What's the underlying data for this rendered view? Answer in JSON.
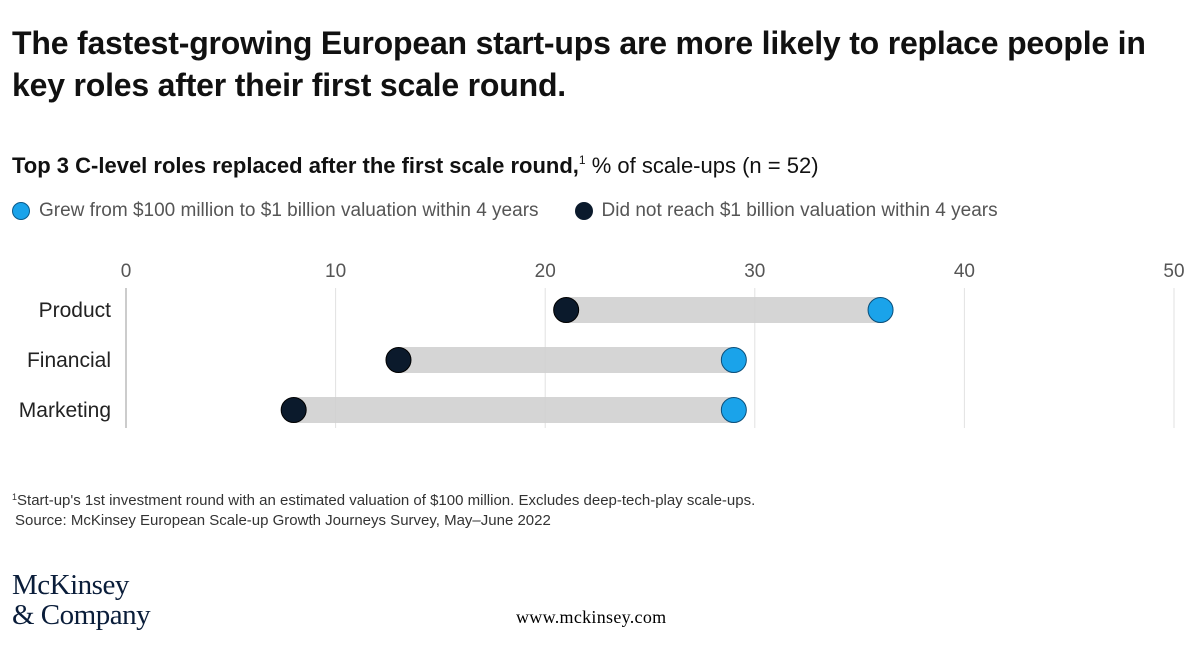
{
  "title": "The fastest-growing European start-ups are more likely to replace people in key roles after their first scale round.",
  "subtitle": {
    "bold": "Top 3 C-level roles replaced after the first scale round,",
    "sup": "1",
    "rest": " % of scale-ups (n = 52)"
  },
  "colors": {
    "accent": "#1aa3ea",
    "dark": "#0b1a2c",
    "bar": "#d0d0d0",
    "grid": "#e2e2e2"
  },
  "chart_data": {
    "type": "dumbbell",
    "title": "Top 3 C-level roles replaced after the first scale round",
    "xlabel": "% of scale-ups (n = 52)",
    "xlim": [
      0,
      50
    ],
    "xticks": [
      "0",
      "10",
      "20",
      "30",
      "40",
      "50"
    ],
    "xtick_values": [
      0,
      10,
      20,
      30,
      40,
      50
    ],
    "categories": [
      "Product",
      "Financial",
      "Marketing"
    ],
    "series": [
      {
        "name": "Grew from $100 million to $1 billion valuation within 4 years",
        "color": "#1aa3ea",
        "values": [
          36,
          29,
          29
        ]
      },
      {
        "name": "Did not reach $1 billion valuation within 4 years",
        "color": "#0b1a2c",
        "values": [
          21,
          13,
          8
        ]
      }
    ]
  },
  "footnote": {
    "sup": "1",
    "line1": "Start-up's 1st investment round with an estimated valuation of $100 million. Excludes deep-tech-play scale-ups.",
    "line2": "Source: McKinsey European Scale-up Growth Journeys Survey, May–June 2022"
  },
  "logo": {
    "line1": "McKinsey",
    "line2": "& Company"
  },
  "url": "www.mckinsey.com"
}
